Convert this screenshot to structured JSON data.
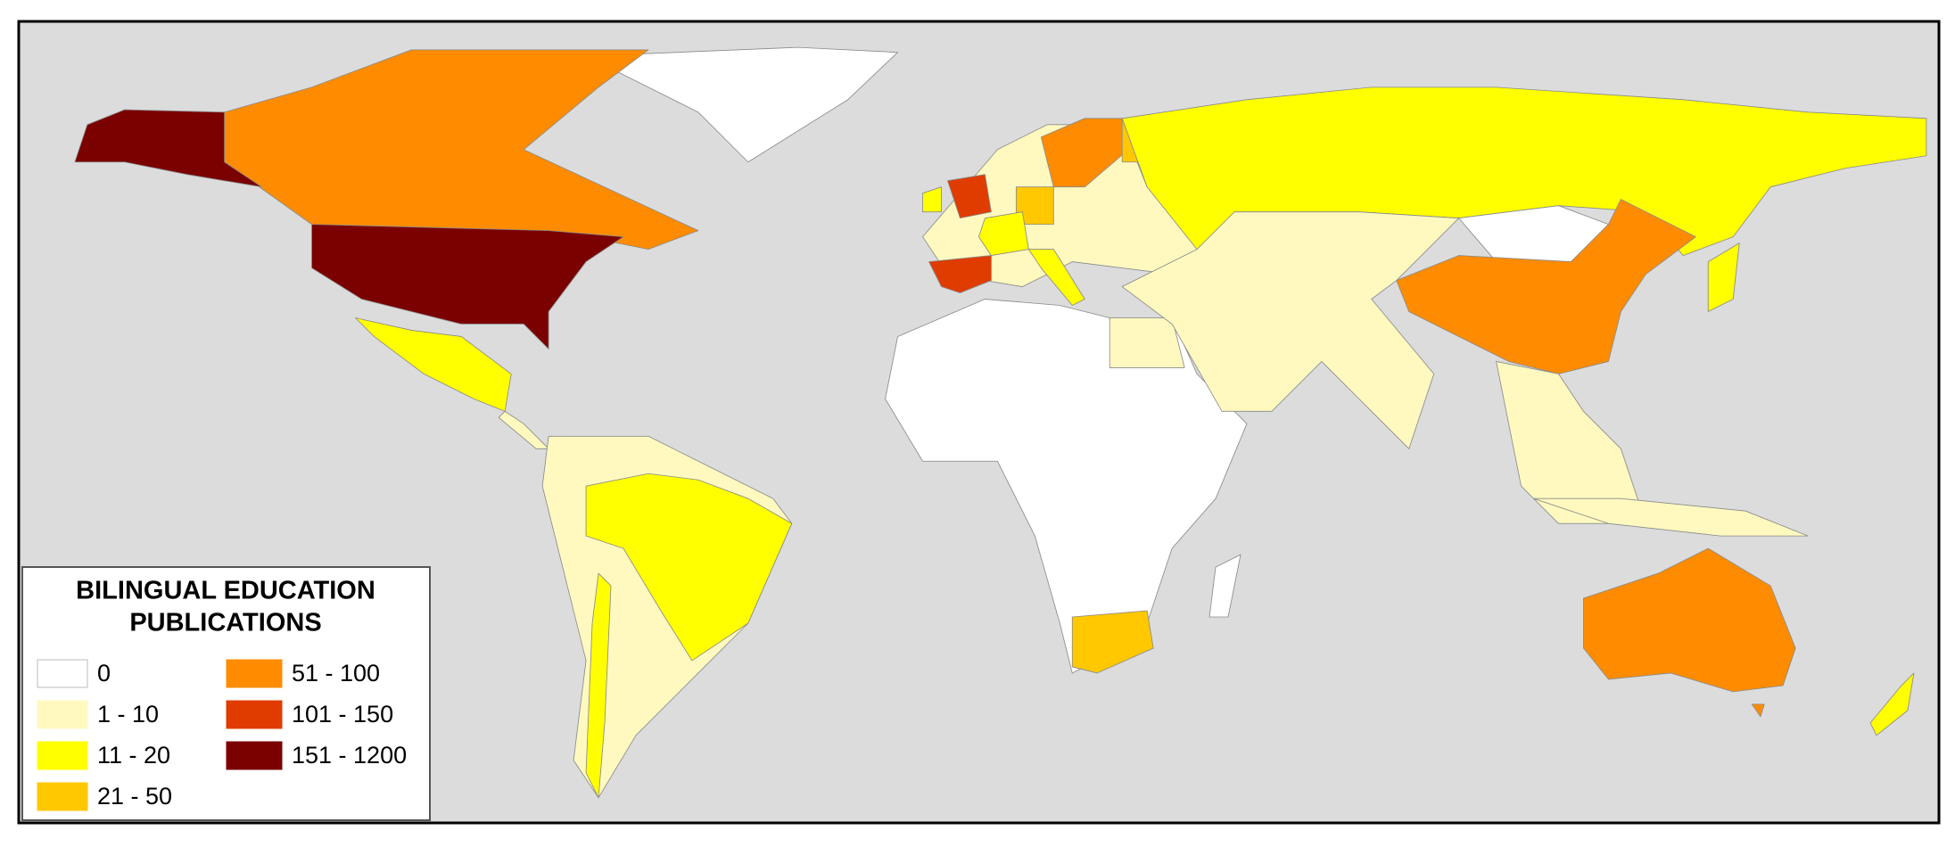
{
  "legend": {
    "title": [
      "BILINGUAL EDUCATION",
      "PUBLICATIONS"
    ],
    "items": [
      {
        "label": "0",
        "color": "#ffffff"
      },
      {
        "label": "1 - 10",
        "color": "#fff9c0"
      },
      {
        "label": "11 - 20",
        "color": "#ffff00"
      },
      {
        "label": "21 - 50",
        "color": "#ffc800"
      },
      {
        "label": "51 - 100",
        "color": "#ff8c00"
      },
      {
        "label": "101 - 150",
        "color": "#e03c00"
      },
      {
        "label": "151 - 1200",
        "color": "#7b0000"
      }
    ]
  }
}
